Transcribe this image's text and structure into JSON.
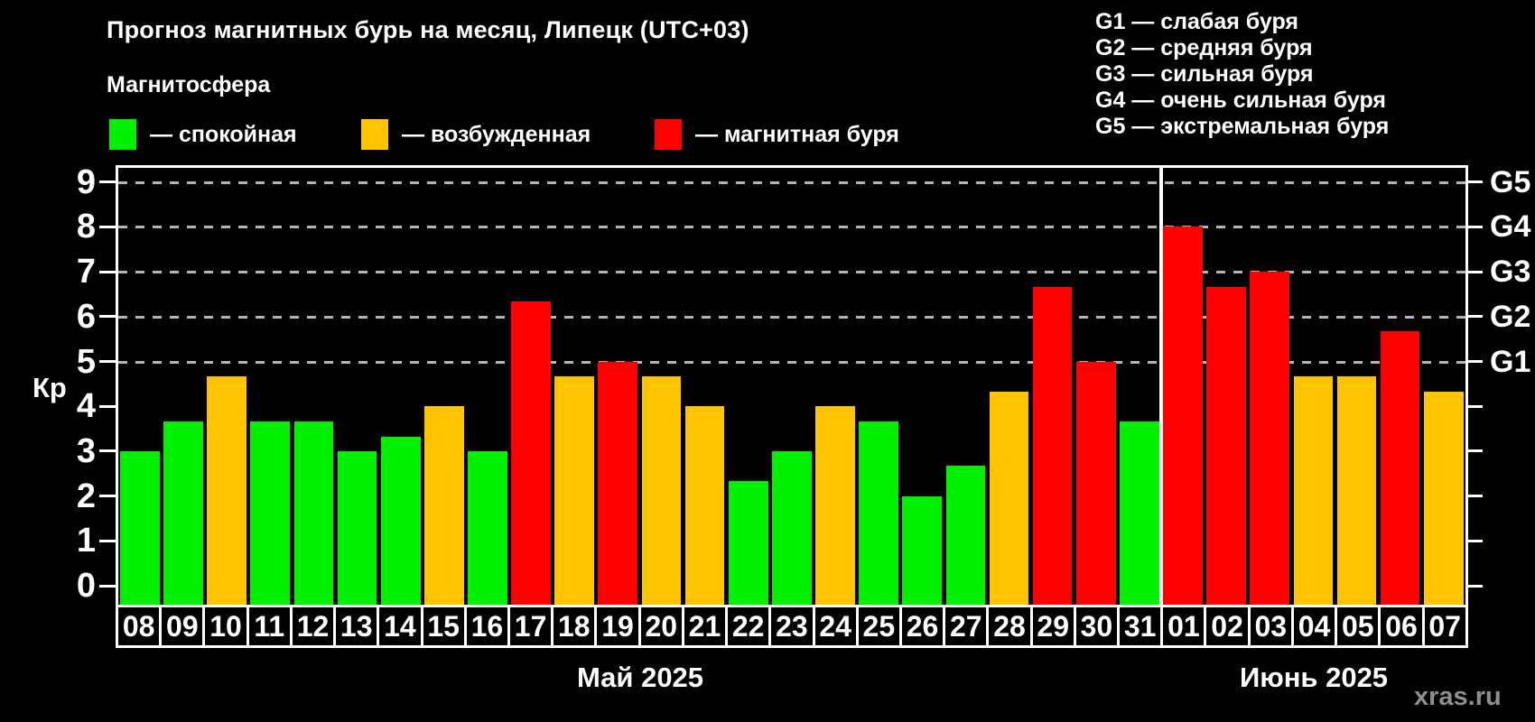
{
  "title": "Прогноз магнитных бурь на месяц, Липецк (UTC+03)",
  "legend": {
    "heading": "Магнитосфера",
    "items": [
      {
        "key": "quiet",
        "label": "— спокойная",
        "color": "#00f000",
        "x": 121
      },
      {
        "key": "excited",
        "label": "— возбужденная",
        "color": "#ffc400",
        "x": 400
      },
      {
        "key": "storm",
        "label": "— магнитная буря",
        "color": "#ff0000",
        "x": 725
      }
    ]
  },
  "storm_scale_legend": [
    "G1 — слабая буря",
    "G2 — средняя буря",
    "G3 — сильная буря",
    "G4 — очень сильная буря",
    "G5 — экстремальная буря"
  ],
  "watermark": "xras.ru",
  "chart_data": {
    "type": "bar",
    "ylabel": "Кр",
    "ylim": [
      -0.42,
      9.38
    ],
    "yticks": [
      0,
      1,
      2,
      3,
      4,
      5,
      6,
      7,
      8,
      9
    ],
    "grid_values": [
      5,
      6,
      7,
      8,
      9
    ],
    "grid_color": "#b4b4b4",
    "right_axis_labels": {
      "5": "G1",
      "6": "G2",
      "7": "G3",
      "8": "G4",
      "9": "G5"
    },
    "state_colors": {
      "quiet": "#00f000",
      "excited": "#ffc400",
      "storm": "#ff0000"
    },
    "months": [
      {
        "label": "Май 2025",
        "days": 24
      },
      {
        "label": "Июнь 2025",
        "days": 7
      }
    ],
    "bars": [
      {
        "day": "08",
        "kp": 3.0,
        "state": "quiet"
      },
      {
        "day": "09",
        "kp": 3.67,
        "state": "quiet"
      },
      {
        "day": "10",
        "kp": 4.67,
        "state": "excited"
      },
      {
        "day": "11",
        "kp": 3.67,
        "state": "quiet"
      },
      {
        "day": "12",
        "kp": 3.67,
        "state": "quiet"
      },
      {
        "day": "13",
        "kp": 3.0,
        "state": "quiet"
      },
      {
        "day": "14",
        "kp": 3.33,
        "state": "quiet"
      },
      {
        "day": "15",
        "kp": 4.0,
        "state": "excited"
      },
      {
        "day": "16",
        "kp": 3.0,
        "state": "quiet"
      },
      {
        "day": "17",
        "kp": 6.33,
        "state": "storm"
      },
      {
        "day": "18",
        "kp": 4.67,
        "state": "excited"
      },
      {
        "day": "19",
        "kp": 5.0,
        "state": "storm"
      },
      {
        "day": "20",
        "kp": 4.67,
        "state": "excited"
      },
      {
        "day": "21",
        "kp": 4.0,
        "state": "excited"
      },
      {
        "day": "22",
        "kp": 2.33,
        "state": "quiet"
      },
      {
        "day": "23",
        "kp": 3.0,
        "state": "quiet"
      },
      {
        "day": "24",
        "kp": 4.0,
        "state": "excited"
      },
      {
        "day": "25",
        "kp": 3.67,
        "state": "quiet"
      },
      {
        "day": "26",
        "kp": 2.0,
        "state": "quiet"
      },
      {
        "day": "27",
        "kp": 2.67,
        "state": "quiet"
      },
      {
        "day": "28",
        "kp": 4.33,
        "state": "excited"
      },
      {
        "day": "29",
        "kp": 6.67,
        "state": "storm"
      },
      {
        "day": "30",
        "kp": 5.0,
        "state": "storm"
      },
      {
        "day": "31",
        "kp": 3.67,
        "state": "quiet"
      },
      {
        "day": "01",
        "kp": 8.0,
        "state": "storm"
      },
      {
        "day": "02",
        "kp": 6.67,
        "state": "storm"
      },
      {
        "day": "03",
        "kp": 7.0,
        "state": "storm"
      },
      {
        "day": "04",
        "kp": 4.67,
        "state": "excited"
      },
      {
        "day": "05",
        "kp": 4.67,
        "state": "excited"
      },
      {
        "day": "06",
        "kp": 5.67,
        "state": "storm"
      },
      {
        "day": "07",
        "kp": 4.33,
        "state": "excited"
      }
    ]
  }
}
